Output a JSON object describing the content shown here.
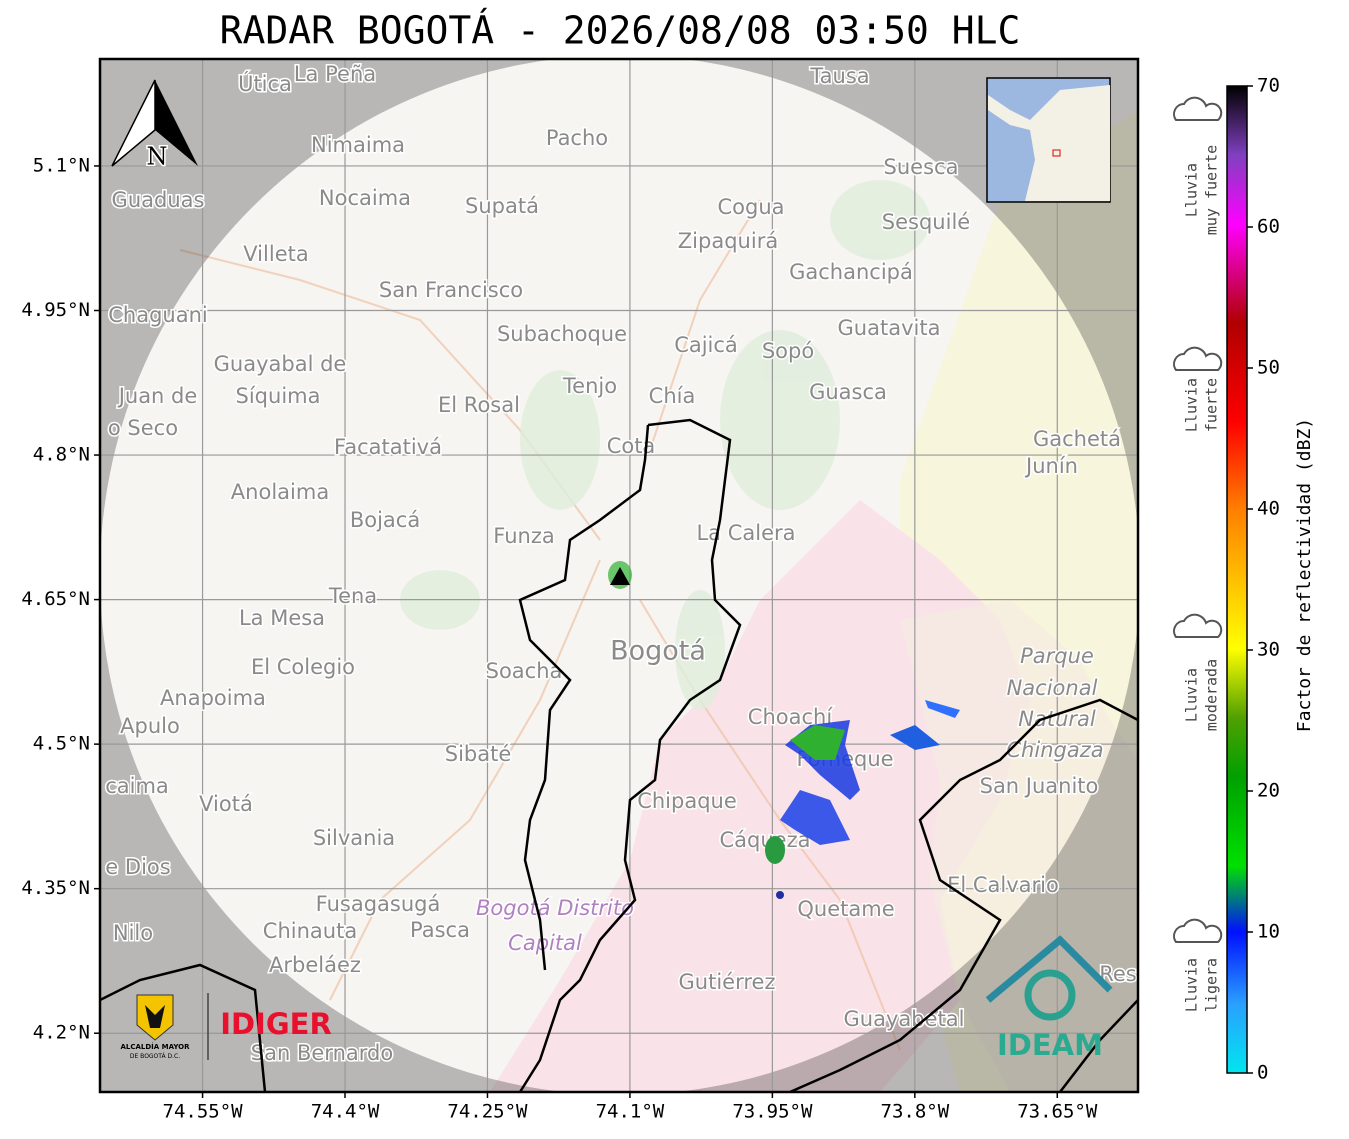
{
  "title": "RADAR BOGOTÁ - 2026/08/08 03:50 HLC",
  "map": {
    "xlim": [
      -74.658,
      -73.565
    ],
    "ylim": [
      4.139,
      5.211
    ],
    "xticks": [
      {
        "value": -74.55,
        "label": "74.55°W"
      },
      {
        "value": -74.4,
        "label": "74.4°W"
      },
      {
        "value": -74.25,
        "label": "74.25°W"
      },
      {
        "value": -74.1,
        "label": "74.1°W"
      },
      {
        "value": -73.95,
        "label": "73.95°W"
      },
      {
        "value": -73.8,
        "label": "73.8°W"
      },
      {
        "value": -73.65,
        "label": "73.65°W"
      }
    ],
    "yticks": [
      {
        "value": 5.1,
        "label": "5.1°N"
      },
      {
        "value": 4.95,
        "label": "4.95°N"
      },
      {
        "value": 4.8,
        "label": "4.8°N"
      },
      {
        "value": 4.65,
        "label": "4.65°N"
      },
      {
        "value": 4.5,
        "label": "4.5°N"
      },
      {
        "value": 4.35,
        "label": "4.35°N"
      },
      {
        "value": 4.2,
        "label": "4.2°N"
      }
    ],
    "north": "N",
    "places": [
      "Útica",
      "La Peña",
      "Tausa",
      "Pacho",
      "Nimaima",
      "Guaduas",
      "Nocaima",
      "Supatá",
      "Cogua",
      "Suesca",
      "Sesquilé",
      "Villeta",
      "Zipaquirá",
      "Gachancipá",
      "San Francisco",
      "Chaguani",
      "Subachoque",
      "Cajicá",
      "Sopó",
      "Guatavita",
      "Guayabal de",
      "Síquima",
      "Juan de",
      "o Seco",
      "Tenjo",
      "Chía",
      "Guasca",
      "El Rosal",
      "Facatativá",
      "Cota",
      "Gachetá",
      "Junín",
      "Anolaima",
      "Bojacá",
      "Funza",
      "La Calera",
      "Tena",
      "La Mesa",
      "Bogotá",
      "El Colegio",
      "Soacha",
      "Anapoima",
      "Apulo",
      "Parque",
      "Nacional",
      "Natural",
      "Chingaza",
      "Choachí",
      "Fómeque",
      "San Juanito",
      "Sibaté",
      "Chipaque",
      "caima",
      "Viotá",
      "Cáqueza",
      "Silvania",
      "e Dios",
      "El Calvario",
      "Fusagasugá",
      "Quetame",
      "Bogotá Distrito",
      "Capital",
      "Chinauta",
      "Pasca",
      "Nilo",
      "Arbeláez",
      "Gutiérrez",
      "Guayabetal",
      "San Bernardo",
      "Res"
    ]
  },
  "colorbar": {
    "label": "Factor de reflectividad (dBZ)",
    "lim": [
      0,
      70
    ],
    "ticks": [
      0,
      10,
      20,
      30,
      40,
      50,
      60,
      70
    ],
    "categories": [
      [
        "Lluvia",
        "muy fuerte"
      ],
      [
        "Lluvia",
        "fuerte"
      ],
      [
        "Lluvia",
        "moderada"
      ],
      [
        "Lluvia",
        "ligera"
      ]
    ]
  },
  "logos": {
    "alcaldia": [
      "ALCALDÍA MAYOR",
      "DE BOGOTÁ D.C."
    ],
    "idiger": "IDIGER",
    "ideam": "IDEAM"
  }
}
